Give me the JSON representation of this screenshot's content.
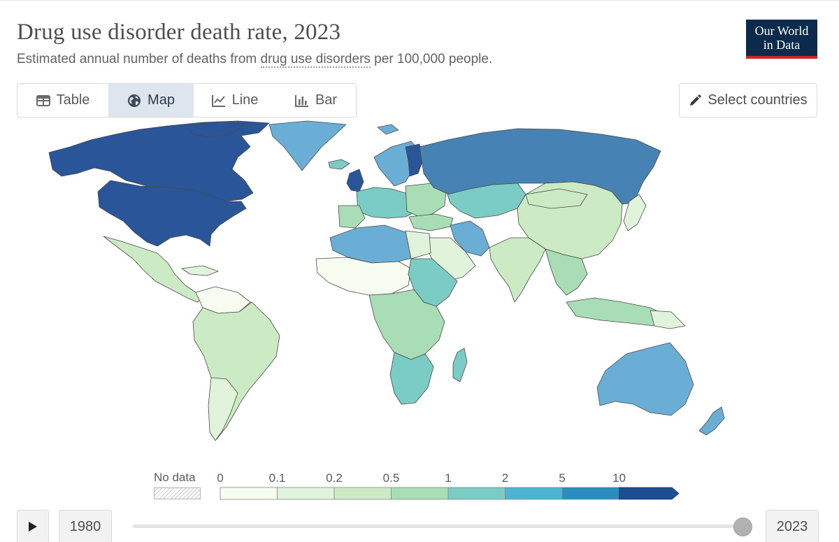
{
  "header": {
    "title": "Drug use disorder death rate, 2023",
    "subtitle_before": "Estimated annual number of deaths from ",
    "subtitle_link": "drug use disorders",
    "subtitle_after": " per 100,000 people.",
    "logo_line1": "Our World",
    "logo_line2": "in Data"
  },
  "tabs": [
    {
      "label": "Table",
      "icon": "table-icon",
      "active": false
    },
    {
      "label": "Map",
      "icon": "globe-icon",
      "active": true
    },
    {
      "label": "Line",
      "icon": "line-chart-icon",
      "active": false
    },
    {
      "label": "Bar",
      "icon": "bar-chart-icon",
      "active": false
    }
  ],
  "select_countries": {
    "label": "Select countries",
    "icon": "pencil-icon"
  },
  "legend": {
    "no_data_label": "No data",
    "bins": [
      {
        "label": "0",
        "color": "#f7fcf0"
      },
      {
        "label": "0.1",
        "color": "#e0f3db"
      },
      {
        "label": "0.2",
        "color": "#ccebc5"
      },
      {
        "label": "0.5",
        "color": "#a8ddb5"
      },
      {
        "label": "1",
        "color": "#7bccc4"
      },
      {
        "label": "2",
        "color": "#4eb3d3"
      },
      {
        "label": "5",
        "color": "#2b8cbe"
      },
      {
        "label": "10",
        "color": "#1d4e94"
      }
    ]
  },
  "colors": {
    "lowest": "#f7fcf0",
    "low": "#e0f3db",
    "low_mid": "#ccebc5",
    "mid": "#a8ddb5",
    "mid_high": "#7bccc4",
    "high": "#6aaed6",
    "higher": "#4682b4",
    "highest": "#2a5599",
    "no_data": "#ffffff",
    "border": "#555555"
  },
  "timeline": {
    "start_year": "1980",
    "end_year": "2023",
    "current_year": "2023",
    "play_icon": "play-icon"
  }
}
